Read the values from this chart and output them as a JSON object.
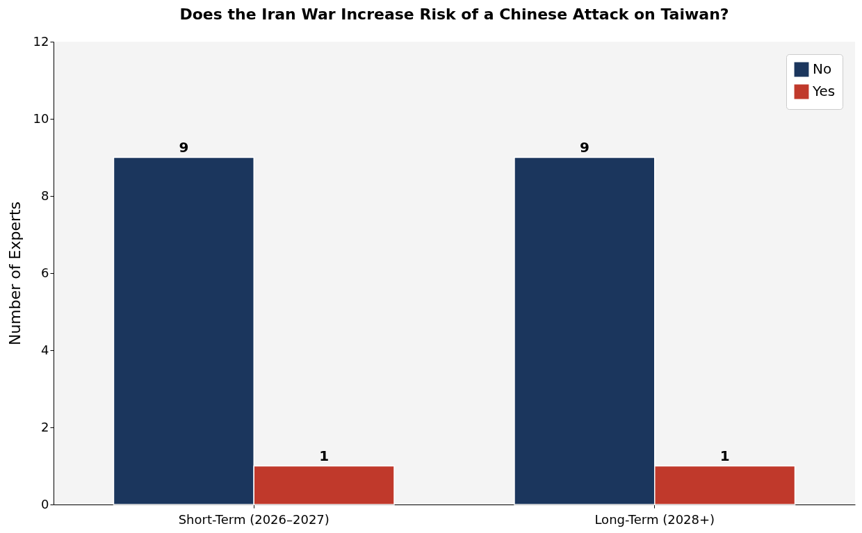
{
  "chart_data": {
    "type": "bar",
    "title": "Does the Iran War Increase Risk of a Chinese Attack on Taiwan?",
    "ylabel": "Number of Experts",
    "categories": [
      "Short-Term (2026–2027)",
      "Long-Term (2028+)"
    ],
    "series": [
      {
        "name": "No",
        "color": "#1b365d",
        "values": [
          9,
          9
        ]
      },
      {
        "name": "Yes",
        "color": "#c0392b",
        "values": [
          1,
          1
        ]
      }
    ],
    "ylim": [
      0,
      12
    ],
    "yticks": [
      0,
      2,
      4,
      6,
      8,
      10,
      12
    ],
    "grid": false,
    "legend": "top right",
    "data_labels": true
  }
}
